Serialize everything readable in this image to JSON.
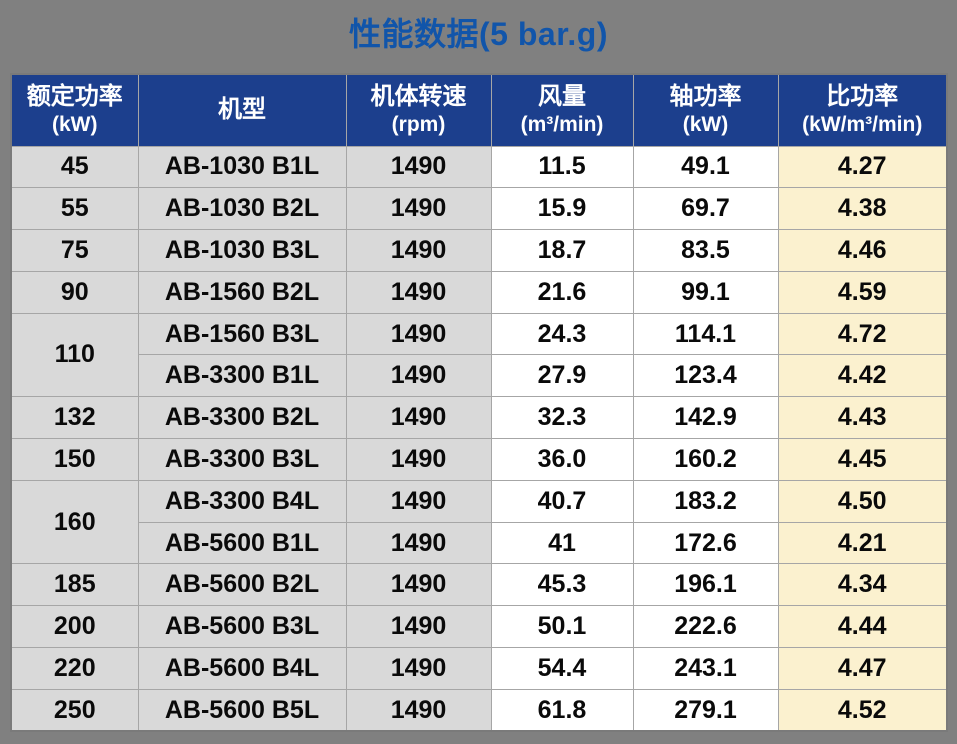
{
  "title": "性能数据(5 bar.g)",
  "colors": {
    "page_bg": "#808080",
    "title_text": "#1155AA",
    "header_bg": "#1C3F8D",
    "header_text": "#FFFFFF",
    "gray_cell": "#D9D9D9",
    "white_cell": "#FFFFFF",
    "cream_cell": "#FBF1CF",
    "grid_line": "#A6A6A6"
  },
  "table": {
    "headers": [
      {
        "key": "power",
        "title": "额定功率",
        "unit": "(kW)"
      },
      {
        "key": "model",
        "title": "机型",
        "unit": ""
      },
      {
        "key": "rpm",
        "title": "机体转速",
        "unit": "(rpm)"
      },
      {
        "key": "flow",
        "title": "风量",
        "unit": "(m³/min)"
      },
      {
        "key": "shaft",
        "title": "轴功率",
        "unit": "(kW)"
      },
      {
        "key": "specific",
        "title": "比功率",
        "unit": "(kW/m³/min)"
      }
    ],
    "power_merge_start_spans": {
      "4": 2,
      "8": 2
    }
  },
  "chart_data": {
    "type": "table",
    "title": "性能数据(5 bar.g)",
    "columns": [
      "额定功率 (kW)",
      "机型",
      "机体转速 (rpm)",
      "风量 (m³/min)",
      "轴功率 (kW)",
      "比功率 (kW/m³/min)"
    ],
    "rows": [
      [
        "45",
        "AB-1030 B1L",
        "1490",
        "11.5",
        "49.1",
        "4.27"
      ],
      [
        "55",
        "AB-1030 B2L",
        "1490",
        "15.9",
        "69.7",
        "4.38"
      ],
      [
        "75",
        "AB-1030 B3L",
        "1490",
        "18.7",
        "83.5",
        "4.46"
      ],
      [
        "90",
        "AB-1560 B2L",
        "1490",
        "21.6",
        "99.1",
        "4.59"
      ],
      [
        "110",
        "AB-1560 B3L",
        "1490",
        "24.3",
        "114.1",
        "4.72"
      ],
      [
        "110",
        "AB-3300 B1L",
        "1490",
        "27.9",
        "123.4",
        "4.42"
      ],
      [
        "132",
        "AB-3300 B2L",
        "1490",
        "32.3",
        "142.9",
        "4.43"
      ],
      [
        "150",
        "AB-3300 B3L",
        "1490",
        "36.0",
        "160.2",
        "4.45"
      ],
      [
        "160",
        "AB-3300 B4L",
        "1490",
        "40.7",
        "183.2",
        "4.50"
      ],
      [
        "160",
        "AB-5600 B1L",
        "1490",
        "41",
        "172.6",
        "4.21"
      ],
      [
        "185",
        "AB-5600 B2L",
        "1490",
        "45.3",
        "196.1",
        "4.34"
      ],
      [
        "200",
        "AB-5600 B3L",
        "1490",
        "50.1",
        "222.6",
        "4.44"
      ],
      [
        "220",
        "AB-5600 B4L",
        "1490",
        "54.4",
        "243.1",
        "4.47"
      ],
      [
        "250",
        "AB-5600 B5L",
        "1490",
        "61.8",
        "279.1",
        "4.52"
      ]
    ],
    "merged_cells": [
      {
        "column": "额定功率 (kW)",
        "value": "110",
        "row_indices": [
          4,
          5
        ]
      },
      {
        "column": "额定功率 (kW)",
        "value": "160",
        "row_indices": [
          8,
          9
        ]
      }
    ]
  }
}
